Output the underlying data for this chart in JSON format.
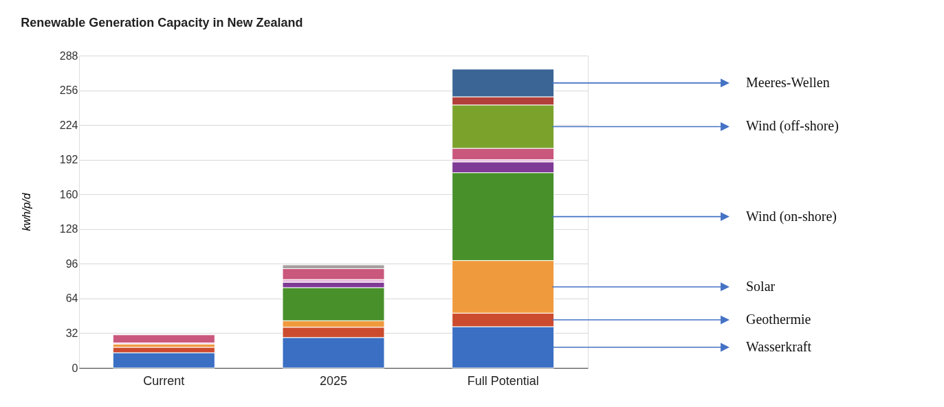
{
  "chart_data": {
    "type": "bar",
    "title": "Renewable Generation Capacity in New Zealand",
    "ylabel": "kwh/p/d",
    "categories": [
      "Current",
      "2025",
      "Full Potential"
    ],
    "stacked": true,
    "ylim": [
      0,
      288
    ],
    "yticks": [
      0,
      32,
      64,
      96,
      128,
      160,
      192,
      224,
      256,
      288
    ],
    "grid": "y",
    "legend": "right",
    "series": [
      {
        "name": "Wasserkraft",
        "color": "#3b6fc4",
        "values": [
          14,
          28,
          38
        ]
      },
      {
        "name": "Geothermie",
        "color": "#cc4b2e",
        "values": [
          5,
          9.5,
          12.5
        ]
      },
      {
        "name": "Solar",
        "color": "#f09a3e",
        "values": [
          3,
          6,
          48.5
        ]
      },
      {
        "name": "Wind (on-shore)",
        "color": "#47902a",
        "values": [
          null,
          30.5,
          81
        ]
      },
      {
        "color": "#7f3a96",
        "values": [
          null,
          5,
          10
        ]
      },
      {
        "color": "#e7b7dc",
        "values": [
          1,
          2.5,
          2
        ]
      },
      {
        "color": "#c9587c",
        "values": [
          7.5,
          10,
          10.5
        ]
      },
      {
        "color": "#a8a0a0",
        "values": [
          null,
          3.5,
          null
        ]
      },
      {
        "name": "Wind (off-shore)",
        "color": "#7ba32c",
        "values": [
          null,
          null,
          40
        ]
      },
      {
        "color": "#b13f3a",
        "values": [
          null,
          null,
          7.5
        ]
      },
      {
        "name": "Meeres-Wellen",
        "color": "#3b6595",
        "values": [
          null,
          null,
          25.5
        ]
      }
    ]
  }
}
